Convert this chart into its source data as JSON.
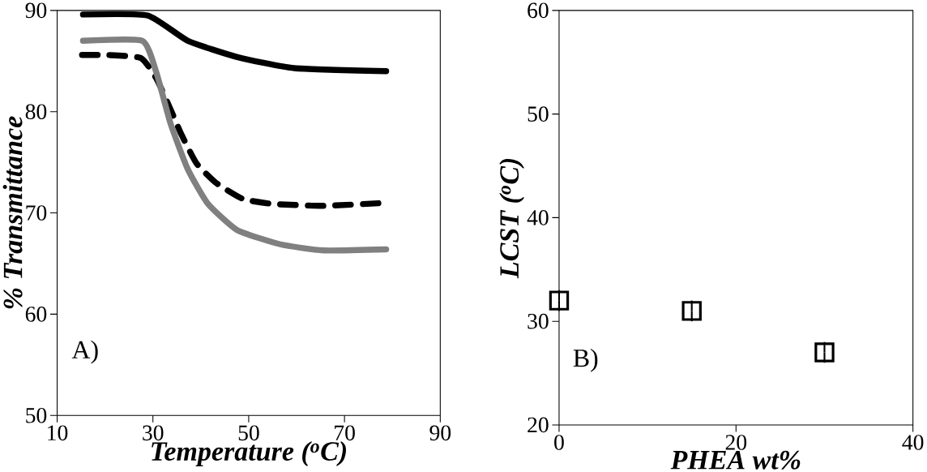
{
  "chart_data": [
    {
      "type": "line",
      "xlabel": "Temperature ($^{o}$C)",
      "ylabel": "% Transmittance",
      "annotations": [
        "A)"
      ],
      "xlim": [
        10,
        90
      ],
      "ylim": [
        50,
        90
      ],
      "xticks": [
        10,
        30,
        50,
        70,
        90
      ],
      "yticks": [
        50,
        60,
        70,
        80,
        90
      ],
      "grid": false,
      "series": [
        {
          "color": "#000000",
          "line_style": "solid",
          "x": [
            15.4,
            28.9,
            37.3,
            47.6,
            59.5,
            78.7
          ],
          "values": [
            89.6,
            89.5,
            87.0,
            85.4,
            84.3,
            84.0
          ]
        },
        {
          "color": "#000000",
          "line_style": "dashed",
          "x": [
            15.2,
            20.6,
            27.5,
            30.7,
            33.7,
            35.9,
            39.1,
            43.1,
            48.7,
            54.8,
            65.6,
            78.7
          ],
          "values": [
            85.6,
            85.6,
            85.3,
            83.3,
            80.2,
            77.8,
            74.9,
            73.0,
            71.4,
            70.9,
            70.7,
            71.0
          ]
        },
        {
          "color": "#808080",
          "line_style": "solid",
          "x": [
            15.4,
            27.8,
            30.7,
            33.7,
            37.3,
            41.5,
            47.6,
            56.6,
            65.6,
            78.7
          ],
          "values": [
            87.0,
            87.0,
            83.9,
            78.8,
            74.3,
            70.9,
            68.3,
            66.9,
            66.3,
            66.4
          ]
        }
      ]
    },
    {
      "type": "scatter",
      "xlabel": "PHEA wt%",
      "ylabel": "LCST ($^{o}$C)",
      "annotations": [
        "B)"
      ],
      "xlim": [
        0,
        40
      ],
      "ylim": [
        20,
        60
      ],
      "xticks": [
        0,
        20,
        40
      ],
      "yticks": [
        20,
        30,
        40,
        50,
        60
      ],
      "grid": false,
      "marker": "square",
      "series": [
        {
          "color": "#000000",
          "x": [
            0,
            15,
            30
          ],
          "values": [
            32,
            31,
            27
          ],
          "errors": [
            1,
            1,
            1
          ]
        }
      ]
    }
  ]
}
